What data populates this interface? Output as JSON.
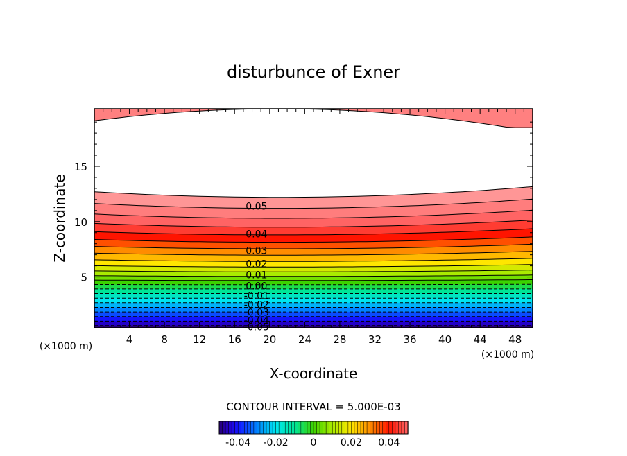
{
  "chart_data": {
    "type": "heatmap",
    "title": "disturbunce of Exner",
    "xlabel": "X-coordinate",
    "ylabel": "Z-coordinate",
    "x_unit": "(×1000 m)",
    "y_unit": "(×1000 m)",
    "xlim": [
      0,
      50
    ],
    "ylim": [
      0.4,
      20.2
    ],
    "x_ticks": [
      "4",
      "8",
      "12",
      "16",
      "20",
      "24",
      "28",
      "32",
      "36",
      "40",
      "44",
      "48"
    ],
    "x_tick_values": [
      4,
      8,
      12,
      16,
      20,
      24,
      28,
      32,
      36,
      40,
      44,
      48
    ],
    "y_ticks": [
      "5",
      "10",
      "15"
    ],
    "y_tick_values": [
      5,
      10,
      15
    ],
    "contour_interval_text": "CONTOUR INTERVAL = 5.000E-03",
    "contour_interval": 0.005,
    "contour_labels": [
      "0.05",
      "0.04",
      "0.03",
      "0.02",
      "0.01",
      "0.00",
      "-0.01",
      "-0.02",
      "-0.03",
      "-0.04",
      "-0.05"
    ],
    "contour_label_values": [
      0.05,
      0.04,
      0.03,
      0.02,
      0.01,
      0.0,
      -0.01,
      -0.02,
      -0.03,
      -0.04,
      -0.05
    ],
    "contour_label_x": 18.5,
    "contour_label_z": [
      11.4,
      8.9,
      7.4,
      6.2,
      5.2,
      4.2,
      3.3,
      2.5,
      1.8,
      1.1,
      0.5
    ],
    "colorbar": {
      "range": [
        -0.05,
        0.05
      ],
      "tick_labels": [
        "-0.04",
        "-0.02",
        "0",
        "0.02",
        "0.04"
      ],
      "tick_values": [
        -0.04,
        -0.02,
        0,
        0.02,
        0.04
      ]
    },
    "upper_band": {
      "zmin": 18.4,
      "contour_z_edge": 18.5,
      "contour_z_center": 20.2,
      "fill_color": "#ff8080"
    },
    "field_profile": {
      "z_values": [
        0.4,
        0.6,
        1.0,
        1.5,
        2.0,
        2.5,
        3.0,
        3.5,
        4.0,
        4.6,
        5.2,
        5.8,
        6.5,
        7.2,
        8.0,
        8.8,
        9.5,
        10.3,
        11.0,
        11.6,
        12.2
      ],
      "values_at_center": [
        -0.052,
        -0.05,
        -0.045,
        -0.039,
        -0.033,
        -0.027,
        -0.021,
        -0.015,
        -0.009,
        -0.001,
        0.007,
        0.014,
        0.021,
        0.027,
        0.034,
        0.04,
        0.045,
        0.05,
        0.054,
        0.057,
        0.06
      ],
      "max_perturbation_x": 21,
      "edge_z_shift_top": 1.0
    },
    "grid": false,
    "legend": "colorbar-bottom"
  }
}
